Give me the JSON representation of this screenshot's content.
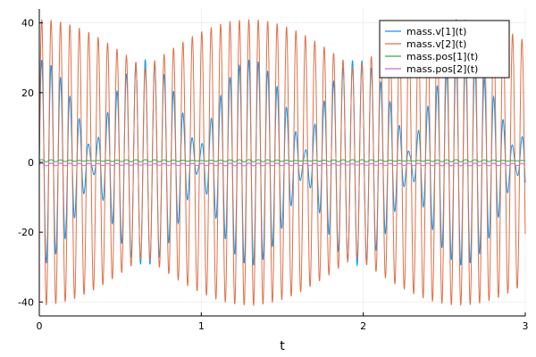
{
  "chart_data": {
    "type": "line",
    "title": "",
    "xlabel": "t",
    "ylabel": "",
    "xlim": [
      0,
      3
    ],
    "ylim": [
      -44,
      44
    ],
    "xticks": [
      0,
      1,
      2,
      3
    ],
    "xtick_labels": [
      "0",
      "1",
      "2",
      "3"
    ],
    "yticks": [
      -40,
      -20,
      0,
      20,
      40
    ],
    "ytick_labels": [
      "-40",
      "-20",
      "0",
      "20",
      "40"
    ],
    "grid": true,
    "legend_position": "top-right",
    "series": [
      {
        "name": "mass.v[1](t)",
        "color": "#009AFA",
        "form": "beat",
        "carrier_cycles_per_unit": 17.2,
        "envelope_cycles_per_unit": 1.53,
        "amplitude": 29.5,
        "start_value": 0
      },
      {
        "name": "mass.v[2](t)",
        "color": "#E26F46",
        "form": "beat-sum",
        "carrier_cycles_per_unit": 17.2,
        "envelope_cycles_per_unit": 0.77,
        "amplitude_base": 34,
        "amplitude_swing": 7,
        "start_value": 0
      },
      {
        "name": "mass.pos[1](t)",
        "color": "#3EA44E",
        "form": "beat",
        "carrier_cycles_per_unit": 17.2,
        "envelope_cycles_per_unit": 1.53,
        "amplitude": 0.3,
        "offset": 0.5,
        "start_value": 1
      },
      {
        "name": "mass.pos[2](t)",
        "color": "#C271D2",
        "form": "beat-sum",
        "carrier_cycles_per_unit": 17.2,
        "envelope_cycles_per_unit": 0.77,
        "amplitude_base": 0.3,
        "amplitude_swing": 0.1,
        "offset": -0.6,
        "start_value": -1
      }
    ]
  }
}
